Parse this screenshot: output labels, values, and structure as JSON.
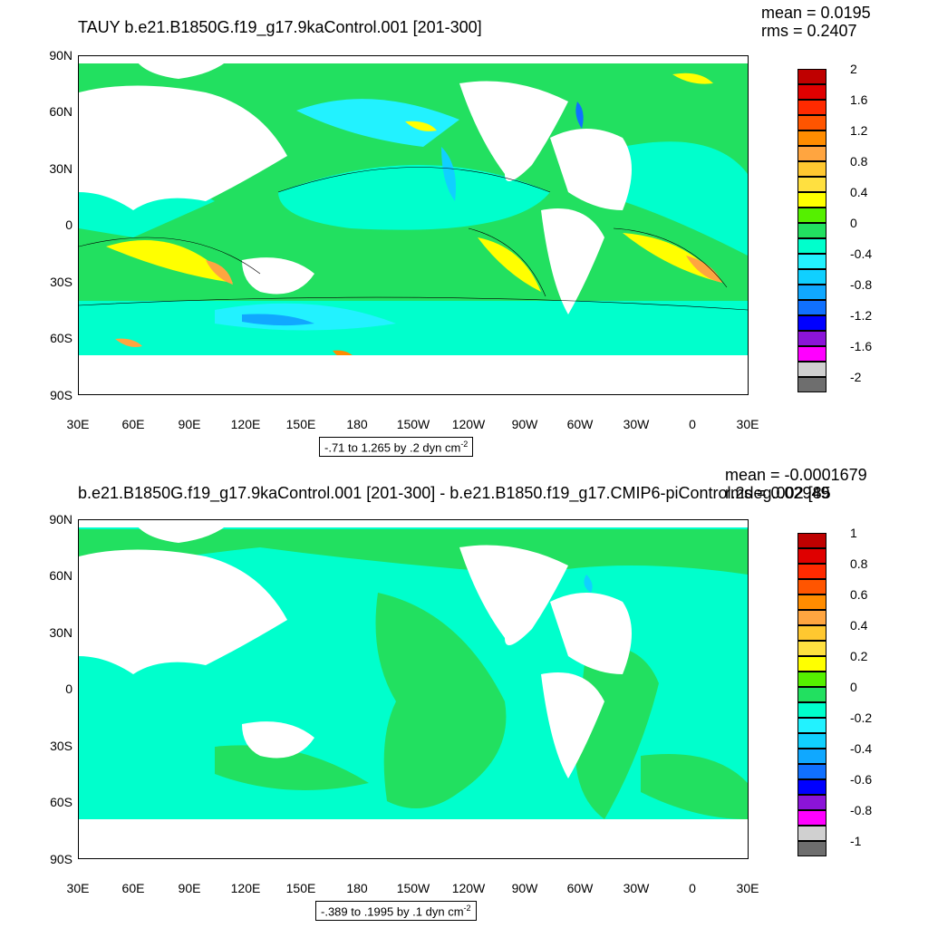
{
  "panels": [
    {
      "title": "TAUY b.e21.B1850G.f19_g17.9kaControl.001 [201-300]",
      "mean_label": "mean = 0.0195",
      "rms_label": "rms = 0.2407",
      "range_text": "-.71 to 1.265 by .2 dyn cm",
      "range_exp": "-2",
      "colorbar_labels": [
        "2",
        "1.6",
        "1.2",
        "0.8",
        "0.4",
        "0",
        "-0.4",
        "-0.8",
        "-1.2",
        "-1.6",
        "-2"
      ]
    },
    {
      "title": "b.e21.B1850G.f19_g17.9kaControl.001 [201-300] - b.e21.B1850.f19_g17.CMIP6-piControl.2deg.002 [85",
      "mean_label": "mean = -0.0001679",
      "rms_label": "rms = 0.02949",
      "range_text": "-.389 to .1995 by .1 dyn cm",
      "range_exp": "-2",
      "colorbar_labels": [
        "1",
        "0.8",
        "0.6",
        "0.4",
        "0.2",
        "0",
        "-0.2",
        "-0.4",
        "-0.6",
        "-0.8",
        "-1"
      ]
    }
  ],
  "axes": {
    "y_labels": [
      "90N",
      "60N",
      "30N",
      "0",
      "30S",
      "60S",
      "90S"
    ],
    "x_labels": [
      "30E",
      "60E",
      "90E",
      "120E",
      "150E",
      "180",
      "150W",
      "120W",
      "90W",
      "60W",
      "30W",
      "0",
      "30E"
    ]
  },
  "chart_data": [
    {
      "type": "heatmap",
      "title": "TAUY b.e21.B1850G.f19_g17.9kaControl.001 [201-300]",
      "variable": "TAUY",
      "units": "dyn cm-2",
      "x_range": [
        "30E",
        "30E"
      ],
      "y_range": [
        "90S",
        "90N"
      ],
      "contour_min": -0.71,
      "contour_max": 1.265,
      "contour_interval": 0.2,
      "mean": 0.0195,
      "rms": 0.2407,
      "colorbar_levels": [
        -2,
        -1.6,
        -1.2,
        -0.8,
        -0.4,
        0,
        0.4,
        0.8,
        1.2,
        1.6,
        2
      ],
      "colorbar_colors": [
        "#bf0000",
        "#df0000",
        "#ff2a00",
        "#ff5500",
        "#ff8c00",
        "#ffa540",
        "#ffc830",
        "#ffe040",
        "#ffff00",
        "#55f000",
        "#22e060",
        "#00ffcc",
        "#22f2ff",
        "#10d0ff",
        "#10a8ff",
        "#1070ff",
        "#0000ff",
        "#8b14d8",
        "#ff00ff",
        "#d0d0d0",
        "#6e6e6e"
      ]
    },
    {
      "type": "heatmap",
      "title": "b.e21.B1850G.f19_g17.9kaControl.001 [201-300] - b.e21.B1850.f19_g17.CMIP6-piControl.2deg.002 [85",
      "units": "dyn cm-2",
      "x_range": [
        "30E",
        "30E"
      ],
      "y_range": [
        "90S",
        "90N"
      ],
      "contour_min": -0.389,
      "contour_max": 0.1995,
      "contour_interval": 0.1,
      "mean": -0.0001679,
      "rms": 0.02949,
      "colorbar_levels": [
        -1,
        -0.8,
        -0.6,
        -0.4,
        -0.2,
        0,
        0.2,
        0.4,
        0.6,
        0.8,
        1
      ],
      "colorbar_colors": [
        "#bf0000",
        "#df0000",
        "#ff2a00",
        "#ff5500",
        "#ff8c00",
        "#ffa540",
        "#ffc830",
        "#ffe040",
        "#ffff00",
        "#55f000",
        "#22e060",
        "#00ffcc",
        "#22f2ff",
        "#10d0ff",
        "#10a8ff",
        "#1070ff",
        "#0000ff",
        "#8b14d8",
        "#ff00ff",
        "#d0d0d0",
        "#6e6e6e"
      ]
    }
  ]
}
